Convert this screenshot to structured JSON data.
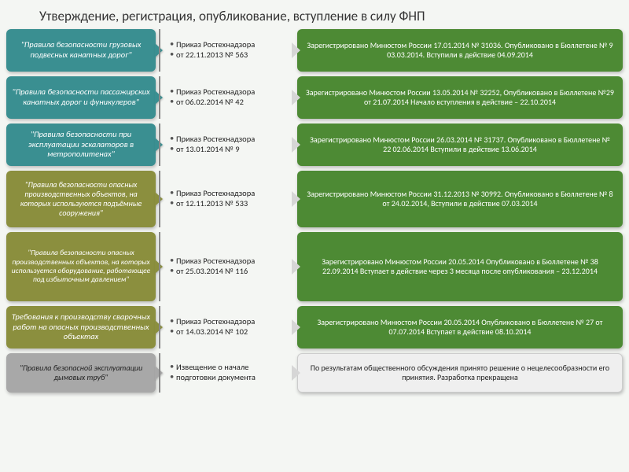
{
  "title": "Утверждение, регистрация, опубликование, вступление в силу ФНП",
  "palette": {
    "teal": "#3a8f91",
    "olive": "#8b8f3e",
    "gray": "#a8a8a8",
    "green": "#4d8a34",
    "white": "#efefef",
    "page_bg": "#f4f6f3"
  },
  "typography": {
    "title_fontsize": 17,
    "body_fontsize": 10,
    "font_family": "Calibri"
  },
  "rows": [
    {
      "height": "sm",
      "col1_style": "teal",
      "col1_text": "\"Правила безопасности грузовых подвесных канатных дорог\"",
      "col2_line1": "Приказ Ростехнадзора",
      "col2_line2": "от 22.11.2013 № 563",
      "col3_style": "green",
      "col3_text": "Зарегистрировано Минюстом России 17.01.2014 № 31036. Опубликовано в Бюллетене № 9 03.03.2014. Вступили в действие 04.09.2014"
    },
    {
      "height": "sm",
      "col1_style": "teal",
      "col1_text": "\"Правила безопасности пассажирских канатных дорог и фуникулеров\"",
      "col2_line1": "Приказ Ростехнадзора",
      "col2_line2": "от 06.02.2014 № 42",
      "col3_style": "green",
      "col3_text": "Зарегистрировано Минюстом России 13.05.2014 № 32252, Опубликовано в Бюллетене №29 от 21.07.2014 Начало вступления в действие – 22.10.2014"
    },
    {
      "height": "sm",
      "col1_style": "teal",
      "col1_text": "\"Правила безопасности при эксплуатации эскалаторов в метрополитенах\"",
      "col2_line1": "Приказ Ростехнадзора",
      "col2_line2": "от 13.01.2014 № 9",
      "col3_style": "green",
      "col3_text": "Зарегистрировано Минюстом России 26.03.2014 № 31737. Опубликовано в Бюллетене № 22 02.06.2014 Вступили в действие 13.06.2014"
    },
    {
      "height": "md",
      "col1_style": "olive",
      "col1_text": "\"Правила безопасности опасных производственных объектов, на которых используются подъёмные сооружения\"",
      "col2_line1": "Приказ Ростехнадзора",
      "col2_line2": "от 12.11.2013 № 533",
      "col3_style": "green",
      "col3_text": "Зарегистрировано Минюстом России 31.12.2013 № 30992. Опубликовано в Бюллетене № 8 от 24.02.2014, Вступили в действие 07.03.2014"
    },
    {
      "height": "lg",
      "col1_style": "olive",
      "col1_text": "\"Правила безопасности опасных производственных объектов, на которых используется оборудование, работающее под избыточным давлением\"",
      "col2_line1": "Приказ Ростехнадзора",
      "col2_line2": "от 25.03.2014 № 116",
      "col3_style": "green",
      "col3_text": "Зарегистрировано Минюстом России 20.05.2014 Опубликовано в Бюллетене № 38 22.09.2014 Вступает в действие через 3 месяца после опубликования – 23.12.2014"
    },
    {
      "height": "sm",
      "col1_style": "olive",
      "col1_text": "Требования к производству сварочных работ на опасных производственных объектах",
      "col2_line1": "Приказ Ростехнадзора",
      "col2_line2": "от 14.03.2014 № 102",
      "col3_style": "green",
      "col3_text": "Зарегистрировано Минюстом России 20.05.2014 Опубликовано в Бюллетене № 27 от 07.07.2014 Вступает в действие 08.10.2014"
    },
    {
      "height": "xs",
      "col1_style": "gray",
      "col1_text": "\"Правила безопасной эксплуатации дымовых труб\"",
      "col2_line1": "Извещение о начале",
      "col2_line2": "подготовки документа",
      "col3_style": "white",
      "col3_text": "По результатам общественного обсуждения принято решение о нецелесообразности его принятия. Разработка прекращена"
    }
  ]
}
